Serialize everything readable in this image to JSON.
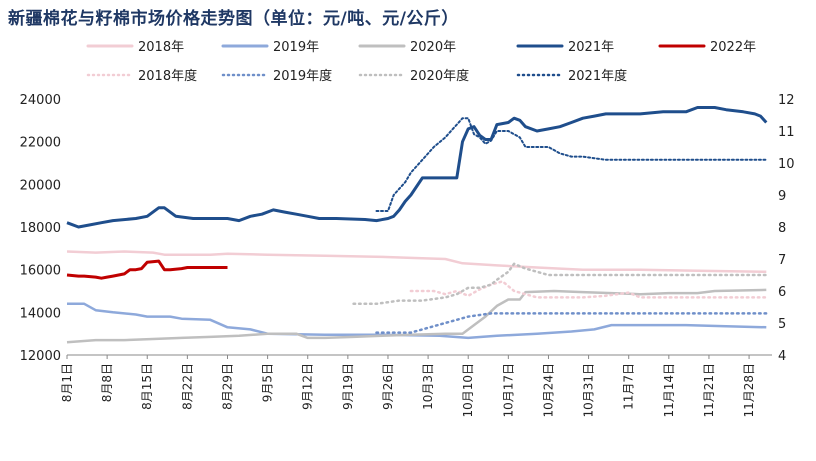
{
  "title": "新疆棉花与籽棉市场价格走势图（单位：元/吨、元/公斤）",
  "chart_data": {
    "type": "line",
    "title": "新疆棉花与籽棉市场价格走势图（单位：元/吨、元/公斤）",
    "left_axis": {
      "min": 12000,
      "max": 24000,
      "ticks": [
        12000,
        14000,
        16000,
        18000,
        20000,
        22000,
        24000
      ]
    },
    "right_axis": {
      "min": 4,
      "max": 12,
      "ticks": [
        4,
        5,
        6,
        7,
        8,
        9,
        10,
        11,
        12
      ]
    },
    "x_range": [
      0,
      123
    ],
    "x_ticks": [
      {
        "x": 0,
        "label": "8月1日"
      },
      {
        "x": 7,
        "label": "8月8日"
      },
      {
        "x": 14,
        "label": "8月15日"
      },
      {
        "x": 21,
        "label": "8月22日"
      },
      {
        "x": 28,
        "label": "8月29日"
      },
      {
        "x": 35,
        "label": "9月5日"
      },
      {
        "x": 42,
        "label": "9月12日"
      },
      {
        "x": 49,
        "label": "9月19日"
      },
      {
        "x": 56,
        "label": "9月26日"
      },
      {
        "x": 63,
        "label": "10月3日"
      },
      {
        "x": 70,
        "label": "10月10日"
      },
      {
        "x": 77,
        "label": "10月17日"
      },
      {
        "x": 84,
        "label": "10月24日"
      },
      {
        "x": 91,
        "label": "10月31日"
      },
      {
        "x": 98,
        "label": "11月7日"
      },
      {
        "x": 105,
        "label": "11月14日"
      },
      {
        "x": 112,
        "label": "11月21日"
      },
      {
        "x": 119,
        "label": "11月28日"
      }
    ],
    "legend": [
      {
        "name": "2018年",
        "color": "#f2cdd4",
        "style": "solid"
      },
      {
        "name": "2019年",
        "color": "#8ea9db",
        "style": "solid"
      },
      {
        "name": "2020年",
        "color": "#bfbfbf",
        "style": "solid"
      },
      {
        "name": "2021年",
        "color": "#1f4e8c",
        "style": "solid"
      },
      {
        "name": "2022年",
        "color": "#c00000",
        "style": "solid"
      },
      {
        "name": "2018年度",
        "color": "#f2cdd4",
        "style": "dotted"
      },
      {
        "name": "2019年度",
        "color": "#6f8fc9",
        "style": "dotted"
      },
      {
        "name": "2020年度",
        "color": "#bfbfbf",
        "style": "dotted"
      },
      {
        "name": "2021年度",
        "color": "#1f4e8c",
        "style": "dotted"
      }
    ],
    "series": [
      {
        "name": "2018年",
        "axis": "left",
        "color": "#f2cdd4",
        "dash": "",
        "width": 2.5,
        "points": [
          [
            0,
            16850
          ],
          [
            5,
            16800
          ],
          [
            10,
            16850
          ],
          [
            15,
            16800
          ],
          [
            17,
            16700
          ],
          [
            25,
            16700
          ],
          [
            28,
            16750
          ],
          [
            35,
            16700
          ],
          [
            45,
            16650
          ],
          [
            55,
            16600
          ],
          [
            60,
            16550
          ],
          [
            66,
            16500
          ],
          [
            69,
            16300
          ],
          [
            75,
            16200
          ],
          [
            82,
            16100
          ],
          [
            90,
            16000
          ],
          [
            100,
            16000
          ],
          [
            110,
            15950
          ],
          [
            122,
            15900
          ]
        ]
      },
      {
        "name": "2019年",
        "axis": "left",
        "color": "#8ea9db",
        "dash": "",
        "width": 2.5,
        "points": [
          [
            0,
            14400
          ],
          [
            3,
            14400
          ],
          [
            5,
            14100
          ],
          [
            8,
            14000
          ],
          [
            12,
            13900
          ],
          [
            14,
            13800
          ],
          [
            18,
            13800
          ],
          [
            20,
            13700
          ],
          [
            25,
            13650
          ],
          [
            28,
            13300
          ],
          [
            32,
            13200
          ],
          [
            35,
            13000
          ],
          [
            45,
            12950
          ],
          [
            55,
            12950
          ],
          [
            65,
            12900
          ],
          [
            70,
            12800
          ],
          [
            75,
            12900
          ],
          [
            82,
            13000
          ],
          [
            88,
            13100
          ],
          [
            92,
            13200
          ],
          [
            95,
            13400
          ],
          [
            108,
            13400
          ],
          [
            115,
            13350
          ],
          [
            122,
            13300
          ]
        ]
      },
      {
        "name": "2020年",
        "axis": "left",
        "color": "#bfbfbf",
        "dash": "",
        "width": 2.5,
        "points": [
          [
            0,
            12600
          ],
          [
            5,
            12700
          ],
          [
            10,
            12700
          ],
          [
            15,
            12750
          ],
          [
            20,
            12800
          ],
          [
            25,
            12850
          ],
          [
            30,
            12900
          ],
          [
            35,
            13000
          ],
          [
            40,
            13000
          ],
          [
            42,
            12800
          ],
          [
            45,
            12800
          ],
          [
            50,
            12850
          ],
          [
            55,
            12900
          ],
          [
            60,
            12950
          ],
          [
            66,
            13000
          ],
          [
            69,
            13000
          ],
          [
            71,
            13400
          ],
          [
            73,
            13800
          ],
          [
            75,
            14300
          ],
          [
            77,
            14600
          ],
          [
            79,
            14600
          ],
          [
            80,
            14950
          ],
          [
            85,
            15000
          ],
          [
            90,
            14950
          ],
          [
            95,
            14900
          ],
          [
            100,
            14850
          ],
          [
            105,
            14900
          ],
          [
            110,
            14900
          ],
          [
            113,
            15000
          ],
          [
            122,
            15050
          ]
        ]
      },
      {
        "name": "2021年",
        "axis": "left",
        "color": "#1f4e8c",
        "dash": "",
        "width": 3,
        "points": [
          [
            0,
            18200
          ],
          [
            2,
            18000
          ],
          [
            4,
            18100
          ],
          [
            6,
            18200
          ],
          [
            8,
            18300
          ],
          [
            12,
            18400
          ],
          [
            14,
            18500
          ],
          [
            16,
            18900
          ],
          [
            17,
            18900
          ],
          [
            19,
            18500
          ],
          [
            22,
            18400
          ],
          [
            26,
            18400
          ],
          [
            28,
            18400
          ],
          [
            30,
            18300
          ],
          [
            32,
            18500
          ],
          [
            34,
            18600
          ],
          [
            36,
            18800
          ],
          [
            38,
            18700
          ],
          [
            40,
            18600
          ],
          [
            42,
            18500
          ],
          [
            44,
            18400
          ],
          [
            47,
            18400
          ],
          [
            52,
            18350
          ],
          [
            54,
            18300
          ],
          [
            56,
            18400
          ],
          [
            57,
            18500
          ],
          [
            58,
            18800
          ],
          [
            59,
            19200
          ],
          [
            60,
            19500
          ],
          [
            61,
            19900
          ],
          [
            62,
            20300
          ],
          [
            64,
            20300
          ],
          [
            66,
            20300
          ],
          [
            68,
            20300
          ],
          [
            69,
            22000
          ],
          [
            70,
            22600
          ],
          [
            71,
            22700
          ],
          [
            72,
            22300
          ],
          [
            73,
            22100
          ],
          [
            74,
            22100
          ],
          [
            75,
            22800
          ],
          [
            77,
            22900
          ],
          [
            78,
            23100
          ],
          [
            79,
            23000
          ],
          [
            80,
            22700
          ],
          [
            82,
            22500
          ],
          [
            84,
            22600
          ],
          [
            86,
            22700
          ],
          [
            88,
            22900
          ],
          [
            90,
            23100
          ],
          [
            92,
            23200
          ],
          [
            94,
            23300
          ],
          [
            98,
            23300
          ],
          [
            100,
            23300
          ],
          [
            104,
            23400
          ],
          [
            108,
            23400
          ],
          [
            110,
            23600
          ],
          [
            113,
            23600
          ],
          [
            115,
            23500
          ],
          [
            118,
            23400
          ],
          [
            120,
            23300
          ],
          [
            121,
            23200
          ],
          [
            122,
            22900
          ]
        ]
      },
      {
        "name": "2022年",
        "axis": "left",
        "color": "#c00000",
        "dash": "",
        "width": 3,
        "points": [
          [
            0,
            15750
          ],
          [
            2,
            15700
          ],
          [
            3,
            15700
          ],
          [
            5,
            15650
          ],
          [
            6,
            15600
          ],
          [
            7,
            15650
          ],
          [
            8,
            15700
          ],
          [
            9,
            15750
          ],
          [
            10,
            15800
          ],
          [
            11,
            16000
          ],
          [
            12,
            16000
          ],
          [
            13,
            16050
          ],
          [
            14,
            16350
          ],
          [
            16,
            16400
          ],
          [
            17,
            16000
          ],
          [
            18,
            16000
          ],
          [
            20,
            16050
          ],
          [
            21,
            16100
          ],
          [
            23,
            16100
          ],
          [
            26,
            16100
          ],
          [
            28,
            16100
          ]
        ]
      },
      {
        "name": "2018年度",
        "axis": "right",
        "color": "#f2cdd4",
        "dash": "1.5 4",
        "width": 2.5,
        "points": [
          [
            60,
            6.0
          ],
          [
            64,
            6.0
          ],
          [
            66,
            5.9
          ],
          [
            68,
            6.0
          ],
          [
            70,
            5.85
          ],
          [
            72,
            6.05
          ],
          [
            74,
            6.2
          ],
          [
            76,
            6.3
          ],
          [
            78,
            6.0
          ],
          [
            80,
            5.9
          ],
          [
            82,
            5.8
          ],
          [
            84,
            5.8
          ],
          [
            90,
            5.8
          ],
          [
            94,
            5.85
          ],
          [
            96,
            5.9
          ],
          [
            98,
            5.95
          ],
          [
            100,
            5.8
          ],
          [
            105,
            5.8
          ],
          [
            110,
            5.8
          ],
          [
            122,
            5.8
          ]
        ]
      },
      {
        "name": "2019年度",
        "axis": "right",
        "color": "#6f8fc9",
        "dash": "1.5 4",
        "width": 2.5,
        "points": [
          [
            54,
            4.7
          ],
          [
            60,
            4.7
          ],
          [
            62,
            4.8
          ],
          [
            64,
            4.9
          ],
          [
            66,
            5.0
          ],
          [
            68,
            5.1
          ],
          [
            70,
            5.2
          ],
          [
            72,
            5.25
          ],
          [
            74,
            5.3
          ],
          [
            76,
            5.3
          ],
          [
            122,
            5.3
          ]
        ]
      },
      {
        "name": "2020年度",
        "axis": "right",
        "color": "#bfbfbf",
        "dash": "1.5 4",
        "width": 2.5,
        "points": [
          [
            50,
            5.6
          ],
          [
            54,
            5.6
          ],
          [
            56,
            5.65
          ],
          [
            58,
            5.7
          ],
          [
            60,
            5.7
          ],
          [
            62,
            5.7
          ],
          [
            64,
            5.75
          ],
          [
            66,
            5.8
          ],
          [
            68,
            5.9
          ],
          [
            70,
            6.1
          ],
          [
            72,
            6.1
          ],
          [
            74,
            6.2
          ],
          [
            75,
            6.35
          ],
          [
            77,
            6.6
          ],
          [
            78,
            6.85
          ],
          [
            80,
            6.7
          ],
          [
            82,
            6.6
          ],
          [
            84,
            6.5
          ],
          [
            88,
            6.5
          ],
          [
            100,
            6.5
          ],
          [
            122,
            6.5
          ]
        ]
      },
      {
        "name": "2021年度",
        "axis": "right",
        "color": "#1f4e8c",
        "dash": "2 2.5",
        "width": 2,
        "points": [
          [
            54,
            8.5
          ],
          [
            56,
            8.5
          ],
          [
            57,
            9.0
          ],
          [
            58,
            9.2
          ],
          [
            59,
            9.4
          ],
          [
            60,
            9.7
          ],
          [
            61,
            9.9
          ],
          [
            62,
            10.1
          ],
          [
            64,
            10.5
          ],
          [
            66,
            10.8
          ],
          [
            67,
            11.0
          ],
          [
            68,
            11.2
          ],
          [
            69,
            11.4
          ],
          [
            70,
            11.4
          ],
          [
            71,
            10.9
          ],
          [
            72,
            10.8
          ],
          [
            73,
            10.6
          ],
          [
            74,
            10.7
          ],
          [
            75,
            11.0
          ],
          [
            77,
            11.0
          ],
          [
            79,
            10.8
          ],
          [
            80,
            10.5
          ],
          [
            84,
            10.5
          ],
          [
            86,
            10.3
          ],
          [
            88,
            10.2
          ],
          [
            90,
            10.2
          ],
          [
            92,
            10.15
          ],
          [
            94,
            10.1
          ],
          [
            100,
            10.1
          ],
          [
            110,
            10.1
          ],
          [
            122,
            10.1
          ]
        ]
      }
    ]
  }
}
